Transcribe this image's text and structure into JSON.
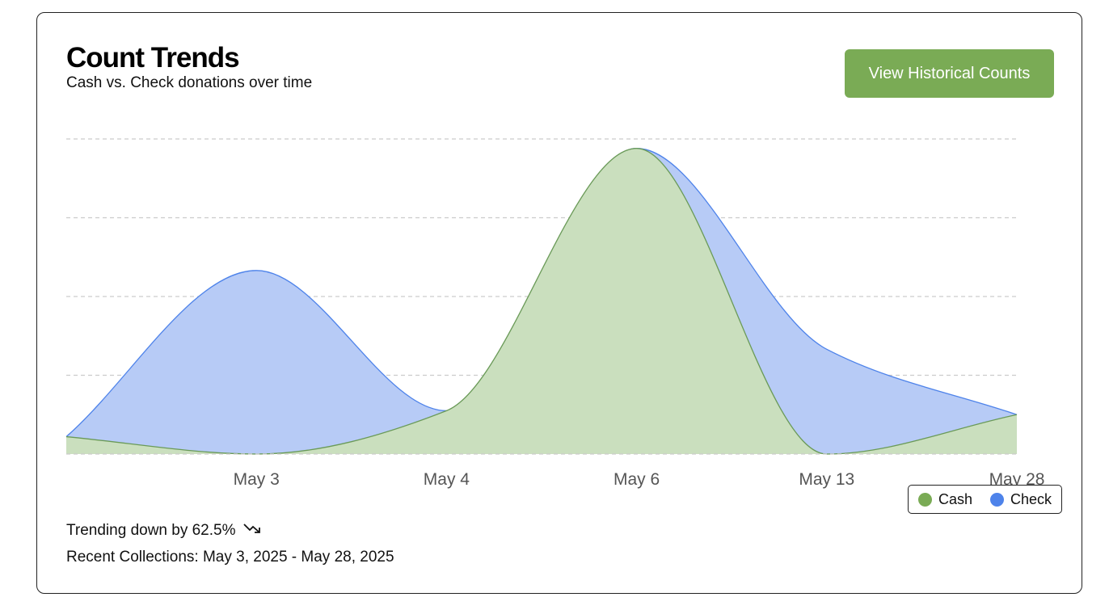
{
  "header": {
    "title": "Count Trends",
    "subtitle": "Cash vs. Check donations over time",
    "button_label": "View Historical Counts"
  },
  "legend": {
    "items": [
      {
        "label": "Cash",
        "color": "#7aab55"
      },
      {
        "label": "Check",
        "color": "#4e83ea"
      }
    ]
  },
  "footer": {
    "trend_text": "Trending down by 62.5%",
    "trend_icon": "trending-down-icon",
    "recent_text": "Recent Collections: May 3, 2025 - May 28, 2025"
  },
  "colors": {
    "accent": "#7aab55",
    "cash_fill": "#cadfbe",
    "cash_line": "#6a9a58",
    "check_fill": "#b7cbf6",
    "check_line": "#4e83ea",
    "grid": "#cccccc"
  },
  "chart_data": {
    "type": "area",
    "title": "Count Trends",
    "subtitle": "Cash vs. Check donations over time",
    "x": [
      "",
      "May 3",
      "May 4",
      "May 6",
      "May 13",
      "May 28"
    ],
    "xlabel": "",
    "ylabel": "",
    "ylim": [
      0,
      4
    ],
    "grid": true,
    "legend_position": "bottom-right",
    "series": [
      {
        "name": "Check",
        "values": [
          0.22,
          2.33,
          0.55,
          3.88,
          1.33,
          0.5
        ]
      },
      {
        "name": "Cash",
        "values": [
          0.22,
          0,
          0.55,
          3.88,
          0,
          0.5
        ]
      }
    ]
  }
}
